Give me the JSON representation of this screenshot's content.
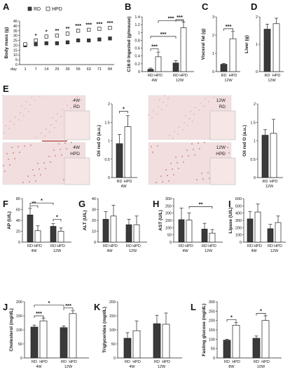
{
  "colors": {
    "RD": "#3a3a3a",
    "HPD": "#ffffff",
    "stroke": "#222222",
    "micrograph": "#f2dede",
    "stain": "#c06070"
  },
  "panelA": {
    "label": "A",
    "chart_data": {
      "type": "scatter",
      "ylabel": "Body mass (g)",
      "xlabel": "day",
      "ylim": [
        0,
        45
      ],
      "yticks": [
        "0",
        "5",
        "10",
        "15",
        "20",
        "25",
        "30",
        "35",
        "40",
        "45"
      ],
      "categories": [
        "1",
        "7",
        "14",
        "29",
        "39",
        "56",
        "63",
        "71",
        "84"
      ],
      "series": [
        {
          "name": "RD",
          "values": [
            20,
            21,
            22,
            22,
            23,
            25,
            25,
            26,
            27
          ],
          "err": [
            2,
            2,
            2,
            2,
            2,
            2,
            2,
            2,
            2
          ]
        },
        {
          "name": "HPD",
          "values": [
            21,
            25,
            29,
            30,
            32,
            35,
            36,
            37,
            38
          ],
          "err": [
            2,
            2,
            2,
            2,
            2,
            2,
            2,
            2,
            2
          ]
        }
      ],
      "stars": [
        "",
        "*",
        "*",
        "**",
        "**",
        "***",
        "***",
        "***",
        "***"
      ],
      "legend": [
        "RD",
        "HPD"
      ]
    }
  },
  "panelB": {
    "label": "B",
    "chart_data": {
      "type": "bar",
      "ylabel": "C16:0 Ingested (g/mouse)",
      "ylim": [
        0,
        1.4
      ],
      "yticks": [
        "0",
        "0.2",
        "0.4",
        "0.6",
        "0.8",
        "1",
        "1.2",
        "1.4"
      ],
      "groups": [
        "4W",
        "12W"
      ],
      "series": [
        {
          "name": "RD",
          "values": [
            0.06,
            0.22
          ],
          "err": [
            0.03,
            0.06
          ]
        },
        {
          "name": "HPD",
          "values": [
            0.38,
            1.12
          ],
          "err": [
            0.12,
            0.15
          ]
        }
      ],
      "brackets": [
        "***",
        "***",
        "***",
        "***"
      ]
    }
  },
  "panelC": {
    "label": "C",
    "chart_data": {
      "type": "bar",
      "ylabel": "Visceral fat (g)",
      "ylim": [
        0,
        3
      ],
      "yticks": [
        "0",
        "1",
        "2",
        "3"
      ],
      "groups": [
        "12W"
      ],
      "categories": [
        "RD",
        "HPD"
      ],
      "values": [
        0.4,
        1.8
      ],
      "err": [
        0.05,
        0.4
      ],
      "brackets": [
        "***"
      ]
    }
  },
  "panelD": {
    "label": "D",
    "chart_data": {
      "type": "bar",
      "ylabel": "Liver (g)",
      "ylim": [
        0,
        2
      ],
      "yticks": [
        "0",
        "1",
        "2"
      ],
      "groups": [
        "12W"
      ],
      "categories": [
        "RD",
        "HPD"
      ],
      "values": [
        1.55,
        1.75
      ],
      "err": [
        0.18,
        0.2
      ]
    }
  },
  "panelE": {
    "label": "E",
    "micrographs": [
      {
        "label_top": "4W",
        "label_bottom": "RD"
      },
      {
        "label_top": "4W",
        "label_bottom": "HPD"
      },
      {
        "label_top": "12W",
        "label_bottom": "RD"
      },
      {
        "label_top": "12W",
        "label_bottom": "HPD"
      }
    ],
    "chart_data": [
      {
        "type": "bar",
        "ylabel": "Oil red O (a.u.)",
        "ylim": [
          0,
          2
        ],
        "yticks": [
          "0",
          "0.5",
          "1",
          "1.5",
          "2"
        ],
        "groups": [
          "4W"
        ],
        "categories": [
          "RD",
          "HPD"
        ],
        "values": [
          0.92,
          1.38
        ],
        "err": [
          0.25,
          0.3
        ],
        "brackets": [
          "*"
        ]
      },
      {
        "type": "bar",
        "ylabel": "Oil red O (a.u.)",
        "ylim": [
          0,
          2
        ],
        "yticks": [
          "0",
          "0.5",
          "1",
          "1.5",
          "2"
        ],
        "groups": [
          "12W"
        ],
        "categories": [
          "RD",
          "HPD"
        ],
        "values": [
          1.15,
          1.2
        ],
        "err": [
          0.15,
          0.38
        ]
      }
    ]
  },
  "panelF": {
    "label": "F",
    "chart_data": {
      "type": "bar",
      "ylabel": "AP (U/L)",
      "ylim": [
        0,
        80
      ],
      "yticks": [
        "0",
        "20",
        "40",
        "60",
        "80"
      ],
      "groups": [
        "4W",
        "12W"
      ],
      "series": [
        {
          "name": "RD",
          "values": [
            50,
            29
          ],
          "err": [
            12,
            5
          ]
        },
        {
          "name": "HPD",
          "values": [
            21,
            20
          ],
          "err": [
            9,
            6
          ]
        }
      ],
      "brackets": [
        "**",
        "*",
        "*"
      ]
    }
  },
  "panelG": {
    "label": "G",
    "chart_data": {
      "type": "bar",
      "ylabel": "ALT (U/L)",
      "ylim": [
        0,
        40
      ],
      "yticks": [
        "0",
        "10",
        "20",
        "30",
        "40"
      ],
      "groups": [
        "4W",
        "12W"
      ],
      "series": [
        {
          "name": "RD",
          "values": [
            21,
            16
          ],
          "err": [
            7,
            5
          ]
        },
        {
          "name": "HPD",
          "values": [
            24,
            16
          ],
          "err": [
            10,
            8
          ]
        }
      ]
    }
  },
  "panelH": {
    "label": "H",
    "chart_data": {
      "type": "bar",
      "ylabel": "AST (U/L)",
      "ylim": [
        0,
        300
      ],
      "yticks": [
        "0",
        "50",
        "100",
        "150",
        "200",
        "250",
        "300"
      ],
      "groups": [
        "4W",
        "12W"
      ],
      "series": [
        {
          "name": "RD",
          "values": [
            155,
            90
          ],
          "err": [
            80,
            40
          ]
        },
        {
          "name": "HPD",
          "values": [
            152,
            62
          ],
          "err": [
            50,
            25
          ]
        }
      ],
      "brackets": [
        "**"
      ]
    }
  },
  "panelI": {
    "label": "I",
    "chart_data": {
      "type": "bar",
      "ylabel": "Lipase (U/L)",
      "ylim": [
        0,
        600
      ],
      "yticks": [
        "0",
        "100",
        "200",
        "300",
        "400",
        "500",
        "600"
      ],
      "groups": [
        "4W",
        "12W"
      ],
      "series": [
        {
          "name": "RD",
          "values": [
            320,
            185
          ],
          "err": [
            100,
            60
          ]
        },
        {
          "name": "HPD",
          "values": [
            415,
            270
          ],
          "err": [
            110,
            90
          ]
        }
      ]
    }
  },
  "panelJ": {
    "label": "J",
    "chart_data": {
      "type": "bar",
      "ylabel": "Cholesterol (mg/dL)",
      "ylim": [
        0,
        200
      ],
      "yticks": [
        "0",
        "50",
        "100",
        "150",
        "200"
      ],
      "groups": [
        "4W",
        "12W"
      ],
      "series": [
        {
          "name": "RD",
          "values": [
            110,
            108
          ],
          "err": [
            7,
            6
          ]
        },
        {
          "name": "HPD",
          "values": [
            132,
            158
          ],
          "err": [
            10,
            10
          ]
        }
      ],
      "brackets": [
        "***",
        "***",
        "*"
      ]
    }
  },
  "panelK": {
    "label": "K",
    "chart_data": {
      "type": "bar",
      "ylabel": "Triglycerides (mg/dL)",
      "ylim": [
        0,
        200
      ],
      "yticks": [
        "0",
        "50",
        "100",
        "150",
        "200"
      ],
      "groups": [
        "4W",
        "12W"
      ],
      "series": [
        {
          "name": "RD",
          "values": [
            70,
            122
          ],
          "err": [
            20,
            30
          ]
        },
        {
          "name": "HPD",
          "values": [
            97,
            120
          ],
          "err": [
            35,
            40
          ]
        }
      ]
    }
  },
  "panelL": {
    "label": "L",
    "chart_data": {
      "type": "bar",
      "ylabel": "Fasting glucose (mg/dL)",
      "ylim": [
        0,
        300
      ],
      "yticks": [
        "0",
        "50",
        "100",
        "150",
        "200",
        "250",
        "300"
      ],
      "groups": [
        "8W",
        "10W"
      ],
      "series": [
        {
          "name": "RD",
          "values": [
            95,
            105
          ],
          "err": [
            5,
            12
          ]
        },
        {
          "name": "HPD",
          "values": [
            175,
            200
          ],
          "err": [
            15,
            25
          ]
        }
      ],
      "brackets": [
        "*",
        "*"
      ]
    }
  }
}
